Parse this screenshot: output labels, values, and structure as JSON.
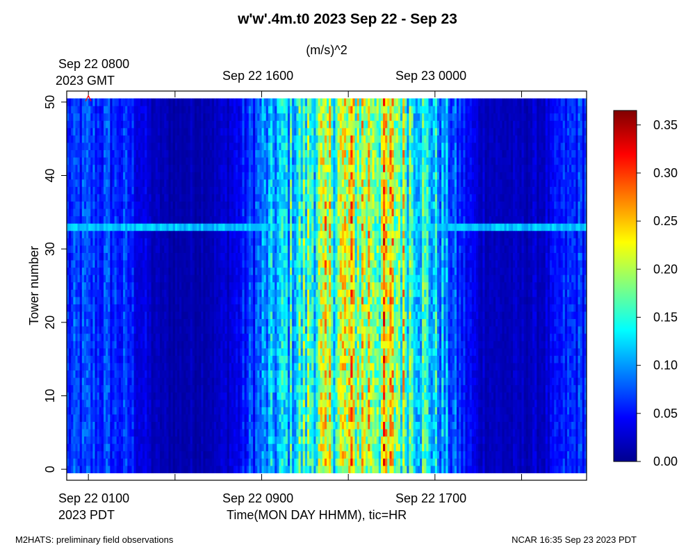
{
  "header": {
    "title": "w'w'.4m.t0 2023 Sep 22 - Sep 23",
    "units": "(m/s)^2"
  },
  "top_axis": {
    "labels": [
      "Sep 22 0800",
      "Sep 22 1600",
      "Sep 23 0000"
    ],
    "zone": "2023 GMT"
  },
  "bottom_axis": {
    "labels": [
      "Sep 22 0100",
      "Sep 22 0900",
      "Sep 22 1700"
    ],
    "zone": "2023 PDT",
    "xlabel": "Time(MON DAY HHMM), tic=HR"
  },
  "footer": {
    "left": "M2HATS: preliminary field observations",
    "right": "NCAR 16:35 Sep 23 2023 PDT"
  },
  "chart_data": {
    "type": "heatmap",
    "title": "w'w'.4m.t0 2023 Sep 22 - Sep 23",
    "colorbar_title": "(m/s)^2",
    "xlabel": "Time(MON DAY HHMM), tic=HR",
    "ylabel": "Tower number",
    "x_unit": "hours since Sep 22 0000 PDT",
    "xlim": [
      0.0,
      24.0
    ],
    "ylim": [
      -1.5,
      51.5
    ],
    "y_ticks": [
      0,
      10,
      20,
      30,
      40,
      50
    ],
    "y_tick_labels": [
      "0",
      "10",
      "20",
      "30",
      "40",
      "50"
    ],
    "x_ticks_pdt": [
      1,
      5,
      9,
      13,
      17,
      21
    ],
    "x_tick_labels_pdt": [
      "Sep 22 0100",
      "",
      "Sep 22 0900",
      "",
      "Sep 22 1700",
      ""
    ],
    "x_tick_labels_gmt": [
      "Sep 22 0800",
      "",
      "Sep 22 1600",
      "",
      "Sep 23 0000",
      ""
    ],
    "towers": [
      0,
      50
    ],
    "data_time_range": [
      0.0,
      24.0
    ],
    "colorbar": {
      "min": 0.0,
      "max": 0.365,
      "ticks": [
        0.0,
        0.05,
        0.1,
        0.15,
        0.2,
        0.25,
        0.3,
        0.35
      ],
      "tick_labels": [
        "0.00",
        "0.05",
        "0.10",
        "0.15",
        "0.20",
        "0.25",
        "0.30",
        "0.35"
      ],
      "colormap": "jet"
    },
    "mean_profile": {
      "description": "approximate tower-averaged variance over time (hours PDT)",
      "hours": [
        0,
        1,
        2,
        3,
        4,
        5,
        6,
        7,
        8,
        9,
        10,
        11,
        12,
        13,
        14,
        15,
        16,
        17,
        18,
        19,
        20,
        21,
        22,
        23,
        24
      ],
      "values": [
        0.055,
        0.06,
        0.058,
        0.05,
        0.02,
        0.015,
        0.018,
        0.022,
        0.04,
        0.08,
        0.11,
        0.14,
        0.17,
        0.19,
        0.2,
        0.19,
        0.16,
        0.11,
        0.06,
        0.028,
        0.02,
        0.02,
        0.025,
        0.05,
        0.06
      ]
    },
    "marker": {
      "symbol": "triangle",
      "time_hours": 1.0,
      "tower": 50.5,
      "color": "#ff0000"
    },
    "annotations": [
      "tower 33 row elevated across record",
      "peak values near Sep 22 1300 PDT"
    ]
  }
}
